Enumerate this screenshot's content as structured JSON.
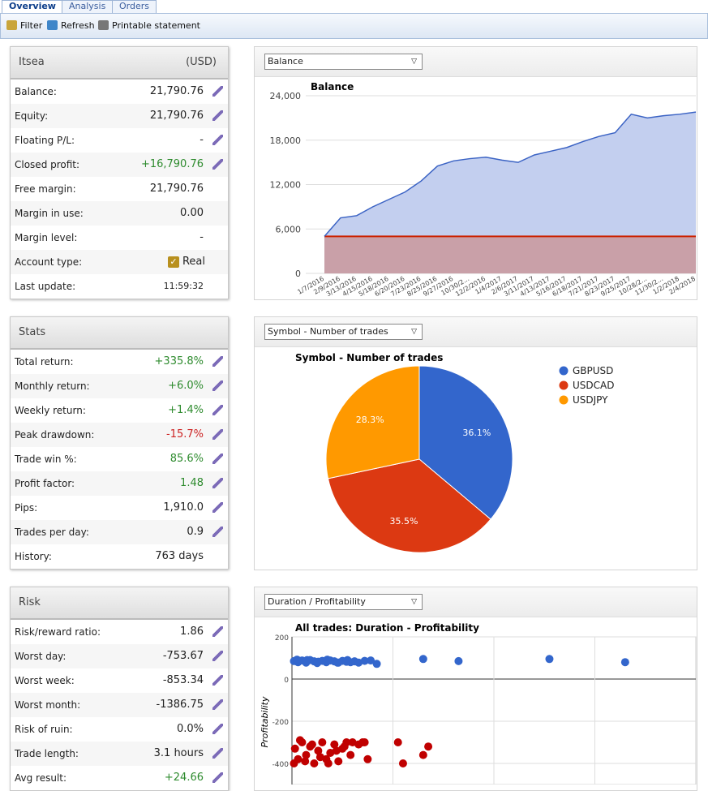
{
  "tabs": [
    "Overview",
    "Analysis",
    "Orders"
  ],
  "toolbar": [
    "Filter",
    "Refresh",
    "Printable statement"
  ],
  "panels": [
    {
      "title": "Itsea",
      "currency": "(USD)",
      "rows": [
        {
          "label": "Balance:",
          "value": "21,790.76",
          "edit": true
        },
        {
          "label": "Equity:",
          "value": "21,790.76",
          "edit": true
        },
        {
          "label": "Floating P/L:",
          "value": "-",
          "edit": true
        },
        {
          "label": "Closed profit:",
          "value": "+16,790.76",
          "color": "#2e8b2e",
          "edit": true
        },
        {
          "label": "Free margin:",
          "value": "21,790.76",
          "edit": false
        },
        {
          "label": "Margin in use:",
          "value": "0.00",
          "edit": false
        },
        {
          "label": "Margin level:",
          "value": "-",
          "edit": false
        },
        {
          "label": "Account type:",
          "value": "Real",
          "checkbox": true,
          "edit": false
        },
        {
          "label": "Last update:",
          "value": "11:59:32",
          "small": true,
          "edit": false
        }
      ]
    },
    {
      "title": "Stats",
      "rows": [
        {
          "label": "Total return:",
          "value": "+335.8%",
          "color": "#2e8b2e",
          "edit": true
        },
        {
          "label": "Monthly return:",
          "value": "+6.0%",
          "color": "#2e8b2e",
          "edit": true
        },
        {
          "label": "Weekly return:",
          "value": "+1.4%",
          "color": "#2e8b2e",
          "edit": true
        },
        {
          "label": "Peak drawdown:",
          "value": "-15.7%",
          "color": "#cc2222",
          "edit": true
        },
        {
          "label": "Trade win %:",
          "value": "85.6%",
          "color": "#2e8b2e",
          "edit": true
        },
        {
          "label": "Profit factor:",
          "value": "1.48",
          "color": "#2e8b2e",
          "edit": true
        },
        {
          "label": "Pips:",
          "value": "1,910.0",
          "edit": true
        },
        {
          "label": "Trades per day:",
          "value": "0.9",
          "edit": true
        },
        {
          "label": "History:",
          "value": "763 days",
          "edit": false
        }
      ]
    },
    {
      "title": "Risk",
      "rows": [
        {
          "label": "Risk/reward ratio:",
          "value": "1.86",
          "edit": true
        },
        {
          "label": "Worst day:",
          "value": "-753.67",
          "edit": true
        },
        {
          "label": "Worst week:",
          "value": "-853.34",
          "edit": true
        },
        {
          "label": "Worst month:",
          "value": "-1386.75",
          "edit": true
        },
        {
          "label": "Risk of ruin:",
          "value": "0.0%",
          "edit": true
        },
        {
          "label": "Trade length:",
          "value": "3.1 hours",
          "edit": true
        },
        {
          "label": "Avg result:",
          "value": "+24.66",
          "color": "#2e8b2e",
          "edit": true
        }
      ]
    }
  ],
  "chart_data": [
    {
      "type": "area",
      "selector": "Balance",
      "title": "Balance",
      "categories": [
        "1/7/2016",
        "2/9/2016",
        "3/13/2016",
        "4/15/2016",
        "5/18/2016",
        "6/20/2016",
        "7/23/2016",
        "8/25/2016",
        "9/27/2016",
        "10/30/2...",
        "12/2/2016",
        "1/4/2017",
        "2/6/2017",
        "3/11/2017",
        "4/13/2017",
        "5/16/2017",
        "6/18/2017",
        "7/21/2017",
        "8/23/2017",
        "9/25/2017",
        "10/28/2...",
        "11/30/2...",
        "1/2/2018",
        "2/4/2018"
      ],
      "values": [
        5000,
        7500,
        7800,
        9000,
        10000,
        11000,
        12500,
        14500,
        15200,
        15500,
        15700,
        15300,
        15000,
        16000,
        16500,
        17000,
        17800,
        18500,
        19000,
        21500,
        21000,
        21300,
        21500,
        21790
      ],
      "color": "#3b63c4",
      "hline": 5000,
      "hline_color": "#cc2200",
      "ylim": [
        0,
        24000
      ],
      "yticks": [
        0,
        {
          "value": 6000,
          "label": "6,000"
        },
        {
          "value": 12000,
          "label": "12,000"
        },
        {
          "value": 18000,
          "label": "18,000"
        },
        {
          "value": 24000,
          "label": "24,000"
        }
      ],
      "grid": true
    },
    {
      "type": "pie",
      "selector": "Symbol - Number of trades",
      "title": "Symbol - Number of trades",
      "categories": [
        "GBPUSD",
        "USDCAD",
        "USDJPY"
      ],
      "values": [
        36.1,
        35.5,
        28.3
      ],
      "value_labels": [
        "36.1%",
        "35.5%",
        "28.3%"
      ],
      "colors": [
        "#3366cc",
        "#dc3912",
        "#ff9900"
      ],
      "legend": "right"
    },
    {
      "type": "scatter",
      "selector": "Duration / Profitability",
      "title": "All trades: Duration - Profitability",
      "ylabel": "Profitability",
      "xlim": [
        0,
        4
      ],
      "xticks": [
        1,
        2,
        3
      ],
      "ylim": [
        -500,
        200
      ],
      "yticks": [
        200,
        0,
        -200,
        -400
      ],
      "grid": true,
      "series": [
        {
          "color": "#3366cc",
          "x": [
            0.02,
            0.06,
            0.1,
            0.14,
            0.18,
            0.22,
            0.26,
            0.3,
            0.34,
            0.38,
            0.42,
            0.46,
            0.5,
            0.54,
            0.58,
            0.62,
            0.66,
            0.72,
            0.78,
            0.84,
            0.05,
            0.15,
            0.25,
            0.35,
            0.45,
            0.55,
            1.3,
            1.65,
            2.55,
            3.3
          ],
          "y": [
            85,
            80,
            88,
            78,
            90,
            84,
            82,
            86,
            80,
            88,
            84,
            78,
            86,
            82,
            80,
            84,
            78,
            86,
            88,
            72,
            92,
            90,
            76,
            92,
            78,
            90,
            95,
            85,
            95,
            80
          ]
        },
        {
          "color": "#c00000",
          "x": [
            0.02,
            0.06,
            0.1,
            0.14,
            0.18,
            0.22,
            0.26,
            0.3,
            0.34,
            0.38,
            0.42,
            0.46,
            0.5,
            0.54,
            0.58,
            0.03,
            0.08,
            0.13,
            0.2,
            0.28,
            0.36,
            0.44,
            0.52,
            0.6,
            0.66,
            0.72,
            0.75,
            1.05,
            1.1,
            1.3,
            1.35,
            0.7
          ],
          "y": [
            -400,
            -380,
            -300,
            -360,
            -320,
            -400,
            -340,
            -300,
            -380,
            -350,
            -310,
            -390,
            -330,
            -300,
            -360,
            -330,
            -290,
            -390,
            -310,
            -370,
            -400,
            -340,
            -320,
            -300,
            -310,
            -300,
            -380,
            -300,
            -400,
            -360,
            -320,
            -300
          ]
        }
      ]
    }
  ]
}
